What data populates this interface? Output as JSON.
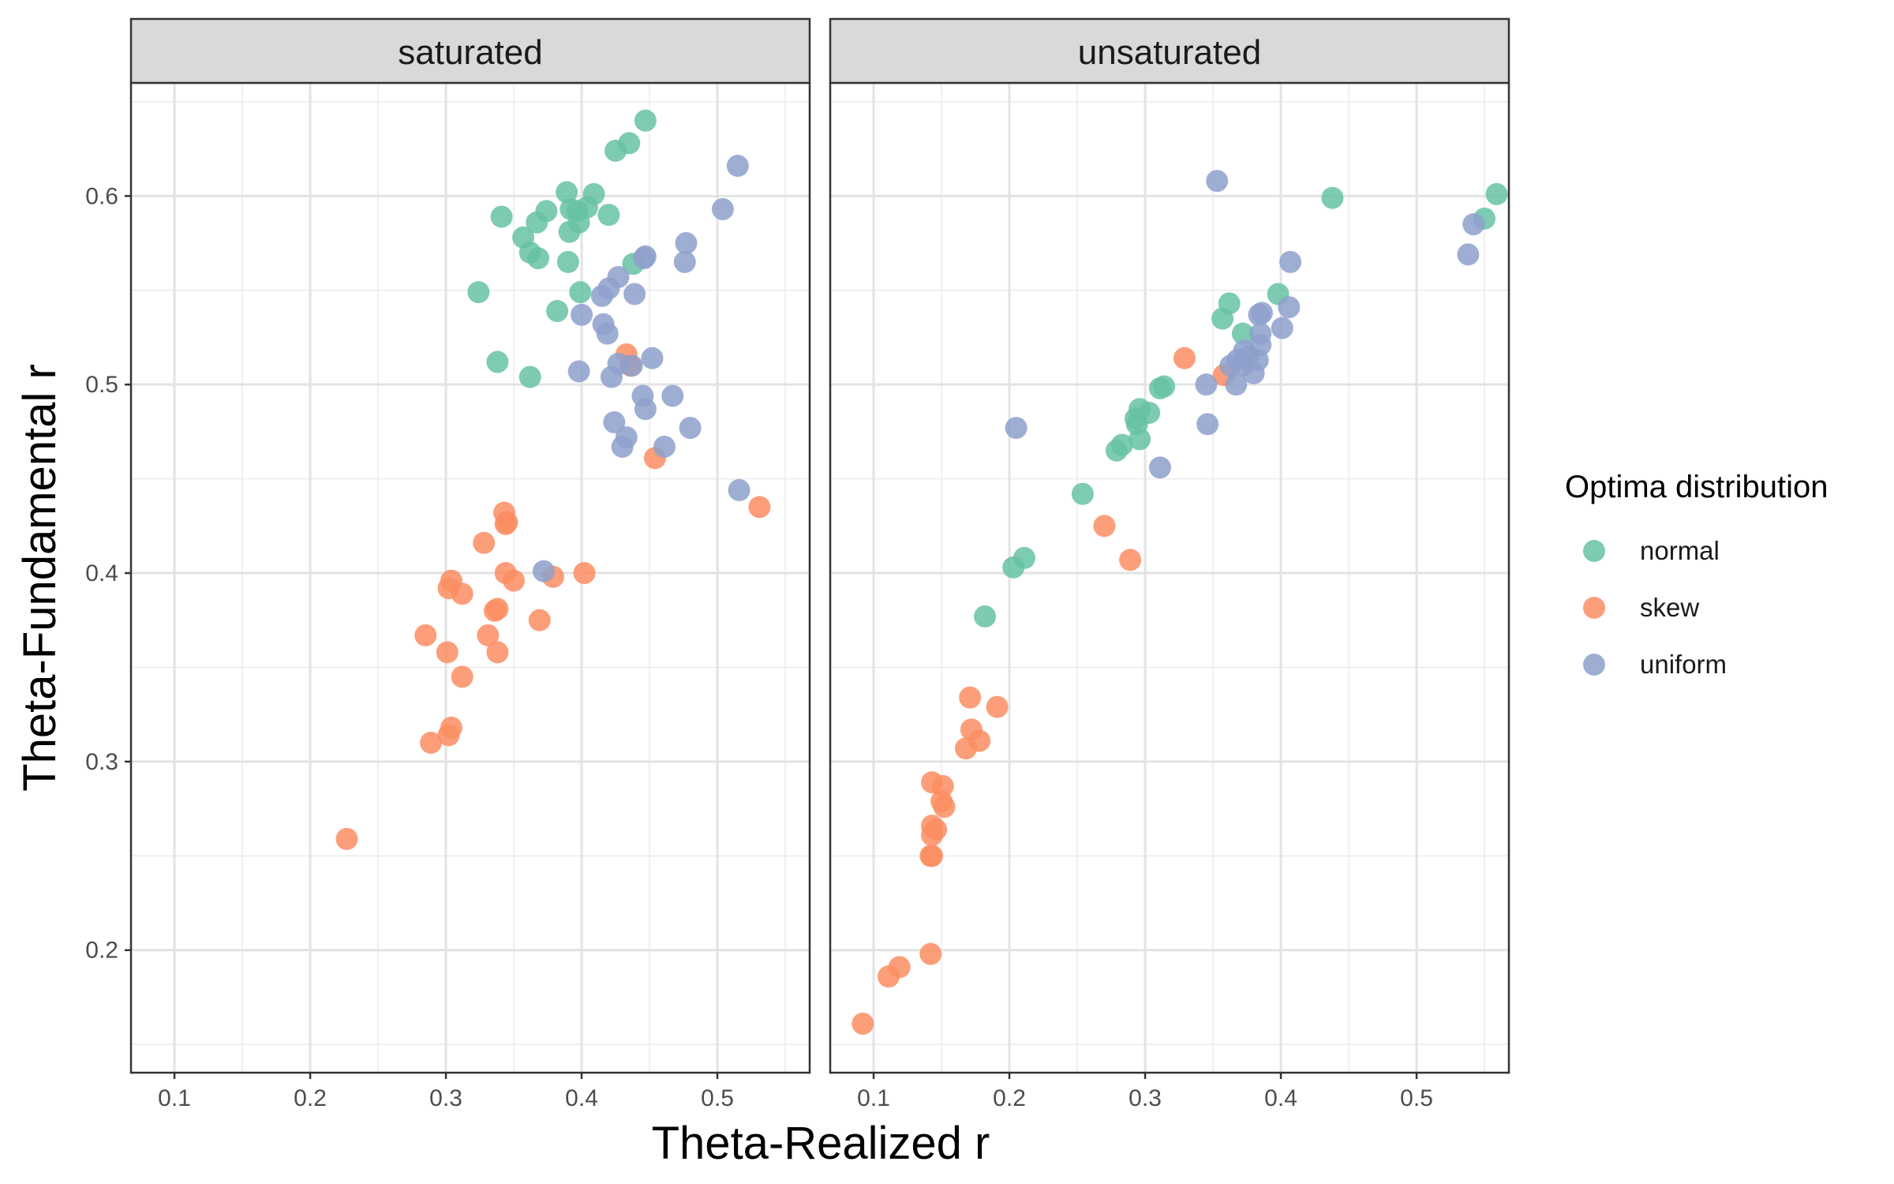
{
  "chart_data": {
    "type": "scatter",
    "xlabel": "Theta-Realized r",
    "ylabel": "Theta-Fundamental r",
    "xlim": [
      0.068,
      0.568
    ],
    "ylim": [
      0.135,
      0.66
    ],
    "x_ticks": [
      "0.1",
      "0.2",
      "0.3",
      "0.4",
      "0.5"
    ],
    "y_ticks": [
      "0.2",
      "0.3",
      "0.4",
      "0.5",
      "0.6"
    ],
    "grid": true,
    "legend": {
      "title": "Optima distribution",
      "position": "right",
      "entries": [
        {
          "label": "normal",
          "color": "#66c2a5"
        },
        {
          "label": "skew",
          "color": "#fc8d62"
        },
        {
          "label": "uniform",
          "color": "#8da0cb"
        }
      ]
    },
    "panels": [
      {
        "title": "saturated",
        "series": [
          {
            "name": "normal",
            "color": "#66c2a5",
            "points": [
              [
                0.447,
                0.64
              ],
              [
                0.435,
                0.628
              ],
              [
                0.425,
                0.624
              ],
              [
                0.389,
                0.602
              ],
              [
                0.409,
                0.601
              ],
              [
                0.341,
                0.589
              ],
              [
                0.367,
                0.586
              ],
              [
                0.374,
                0.592
              ],
              [
                0.392,
                0.593
              ],
              [
                0.397,
                0.592
              ],
              [
                0.404,
                0.594
              ],
              [
                0.42,
                0.59
              ],
              [
                0.398,
                0.586
              ],
              [
                0.357,
                0.578
              ],
              [
                0.391,
                0.581
              ],
              [
                0.362,
                0.57
              ],
              [
                0.368,
                0.567
              ],
              [
                0.39,
                0.565
              ],
              [
                0.438,
                0.564
              ],
              [
                0.324,
                0.549
              ],
              [
                0.399,
                0.549
              ],
              [
                0.382,
                0.539
              ],
              [
                0.338,
                0.512
              ],
              [
                0.362,
                0.504
              ]
            ]
          },
          {
            "name": "skew",
            "color": "#fc8d62",
            "points": [
              [
                0.227,
                0.259
              ],
              [
                0.289,
                0.31
              ],
              [
                0.302,
                0.314
              ],
              [
                0.304,
                0.318
              ],
              [
                0.312,
                0.345
              ],
              [
                0.285,
                0.367
              ],
              [
                0.301,
                0.358
              ],
              [
                0.331,
                0.367
              ],
              [
                0.338,
                0.358
              ],
              [
                0.336,
                0.38
              ],
              [
                0.338,
                0.381
              ],
              [
                0.302,
                0.392
              ],
              [
                0.304,
                0.396
              ],
              [
                0.312,
                0.389
              ],
              [
                0.328,
                0.416
              ],
              [
                0.343,
                0.432
              ],
              [
                0.344,
                0.426
              ],
              [
                0.345,
                0.427
              ],
              [
                0.344,
                0.4
              ],
              [
                0.35,
                0.396
              ],
              [
                0.369,
                0.375
              ],
              [
                0.379,
                0.398
              ],
              [
                0.402,
                0.4
              ],
              [
                0.433,
                0.516
              ],
              [
                0.436,
                0.51
              ],
              [
                0.454,
                0.461
              ],
              [
                0.531,
                0.435
              ]
            ]
          },
          {
            "name": "uniform",
            "color": "#8da0cb",
            "points": [
              [
                0.515,
                0.616
              ],
              [
                0.504,
                0.593
              ],
              [
                0.477,
                0.575
              ],
              [
                0.476,
                0.565
              ],
              [
                0.446,
                0.567
              ],
              [
                0.447,
                0.568
              ],
              [
                0.427,
                0.557
              ],
              [
                0.42,
                0.551
              ],
              [
                0.415,
                0.547
              ],
              [
                0.439,
                0.548
              ],
              [
                0.4,
                0.537
              ],
              [
                0.416,
                0.532
              ],
              [
                0.419,
                0.527
              ],
              [
                0.452,
                0.514
              ],
              [
                0.427,
                0.511
              ],
              [
                0.437,
                0.51
              ],
              [
                0.398,
                0.507
              ],
              [
                0.422,
                0.504
              ],
              [
                0.445,
                0.494
              ],
              [
                0.467,
                0.494
              ],
              [
                0.447,
                0.487
              ],
              [
                0.424,
                0.48
              ],
              [
                0.48,
                0.477
              ],
              [
                0.433,
                0.472
              ],
              [
                0.43,
                0.467
              ],
              [
                0.461,
                0.467
              ],
              [
                0.516,
                0.444
              ],
              [
                0.372,
                0.401
              ]
            ]
          }
        ]
      },
      {
        "title": "unsaturated",
        "series": [
          {
            "name": "normal",
            "color": "#66c2a5",
            "points": [
              [
                0.559,
                0.601
              ],
              [
                0.55,
                0.588
              ],
              [
                0.438,
                0.599
              ],
              [
                0.398,
                0.548
              ],
              [
                0.362,
                0.543
              ],
              [
                0.357,
                0.535
              ],
              [
                0.372,
                0.527
              ],
              [
                0.314,
                0.499
              ],
              [
                0.311,
                0.498
              ],
              [
                0.303,
                0.485
              ],
              [
                0.296,
                0.487
              ],
              [
                0.293,
                0.482
              ],
              [
                0.294,
                0.479
              ],
              [
                0.296,
                0.471
              ],
              [
                0.283,
                0.468
              ],
              [
                0.279,
                0.465
              ],
              [
                0.254,
                0.442
              ],
              [
                0.211,
                0.408
              ],
              [
                0.203,
                0.403
              ],
              [
                0.182,
                0.377
              ]
            ]
          },
          {
            "name": "skew",
            "color": "#fc8d62",
            "points": [
              [
                0.329,
                0.514
              ],
              [
                0.358,
                0.505
              ],
              [
                0.27,
                0.425
              ],
              [
                0.289,
                0.407
              ],
              [
                0.171,
                0.334
              ],
              [
                0.191,
                0.329
              ],
              [
                0.172,
                0.317
              ],
              [
                0.178,
                0.311
              ],
              [
                0.168,
                0.307
              ],
              [
                0.143,
                0.289
              ],
              [
                0.151,
                0.287
              ],
              [
                0.15,
                0.279
              ],
              [
                0.152,
                0.276
              ],
              [
                0.143,
                0.266
              ],
              [
                0.146,
                0.264
              ],
              [
                0.143,
                0.261
              ],
              [
                0.142,
                0.25
              ],
              [
                0.143,
                0.25
              ],
              [
                0.142,
                0.198
              ],
              [
                0.119,
                0.191
              ],
              [
                0.111,
                0.186
              ],
              [
                0.092,
                0.161
              ]
            ]
          },
          {
            "name": "uniform",
            "color": "#8da0cb",
            "points": [
              [
                0.353,
                0.608
              ],
              [
                0.542,
                0.585
              ],
              [
                0.538,
                0.569
              ],
              [
                0.407,
                0.565
              ],
              [
                0.406,
                0.541
              ],
              [
                0.386,
                0.538
              ],
              [
                0.384,
                0.537
              ],
              [
                0.401,
                0.53
              ],
              [
                0.385,
                0.527
              ],
              [
                0.385,
                0.521
              ],
              [
                0.373,
                0.518
              ],
              [
                0.368,
                0.513
              ],
              [
                0.376,
                0.515
              ],
              [
                0.383,
                0.513
              ],
              [
                0.363,
                0.51
              ],
              [
                0.372,
                0.51
              ],
              [
                0.38,
                0.506
              ],
              [
                0.345,
                0.5
              ],
              [
                0.367,
                0.5
              ],
              [
                0.346,
                0.479
              ],
              [
                0.205,
                0.477
              ],
              [
                0.311,
                0.456
              ]
            ]
          }
        ]
      }
    ]
  }
}
